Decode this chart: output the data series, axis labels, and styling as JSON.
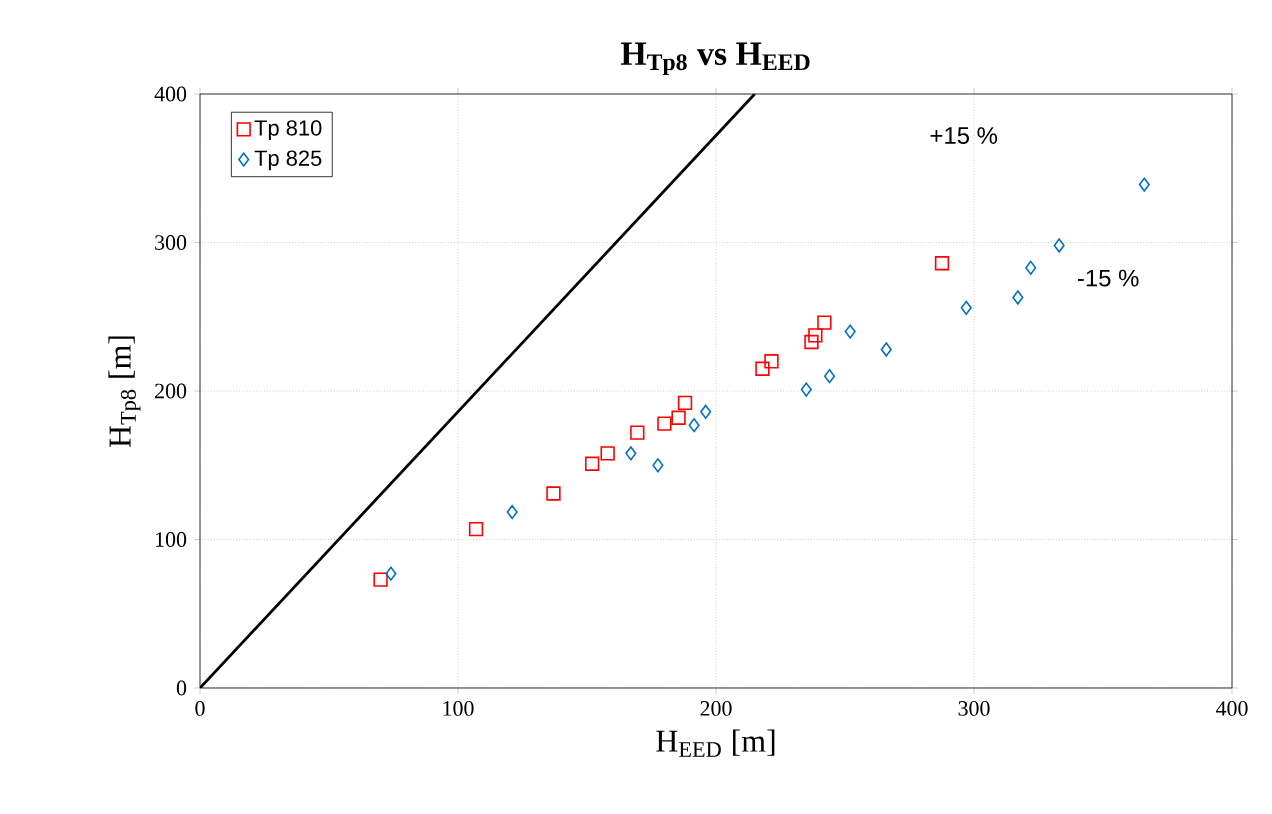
{
  "chart_data": {
    "type": "scatter",
    "title": "H$_{Tp8}$ vs H$_{EED}$",
    "xlabel": "H$_{EED}$ [m]",
    "ylabel": "H$_{Tp8}$ [m]",
    "xlim": [
      0,
      400
    ],
    "xticks": [
      0,
      100,
      200,
      300,
      400
    ],
    "ylim": [
      0,
      400
    ],
    "yticks": [
      0,
      100,
      200,
      300,
      400
    ],
    "grid": true,
    "legend": "top left",
    "annotations": [
      "+15 %",
      "-15 %"
    ],
    "series": [
      {
        "name": "Tp 810",
        "color": "#ff0000",
        "marker": "square",
        "x": [
          70,
          107,
          137,
          152,
          158,
          169.5,
          180,
          185.5,
          188,
          218,
          221.5,
          237,
          238.5,
          242,
          287.6
        ],
        "values": [
          73,
          107,
          131,
          151,
          158,
          172,
          178,
          182,
          192,
          215,
          220,
          233,
          237.5,
          246,
          286
        ]
      },
      {
        "name": "Tp 825",
        "color": "#0070c0",
        "marker": "diamond",
        "x": [
          74,
          121,
          167,
          177.5,
          191.5,
          196,
          235,
          244,
          252,
          266,
          297,
          317,
          322,
          333,
          366
        ],
        "values": [
          77,
          118.5,
          158,
          150,
          177,
          186,
          201,
          210,
          240,
          228,
          256,
          263,
          283,
          298,
          339
        ]
      },
      {
        "type": "line",
        "color": "#000000",
        "marker": "none",
        "x": [
          0,
          215
        ],
        "values": [
          0,
          400
        ]
      }
    ]
  }
}
